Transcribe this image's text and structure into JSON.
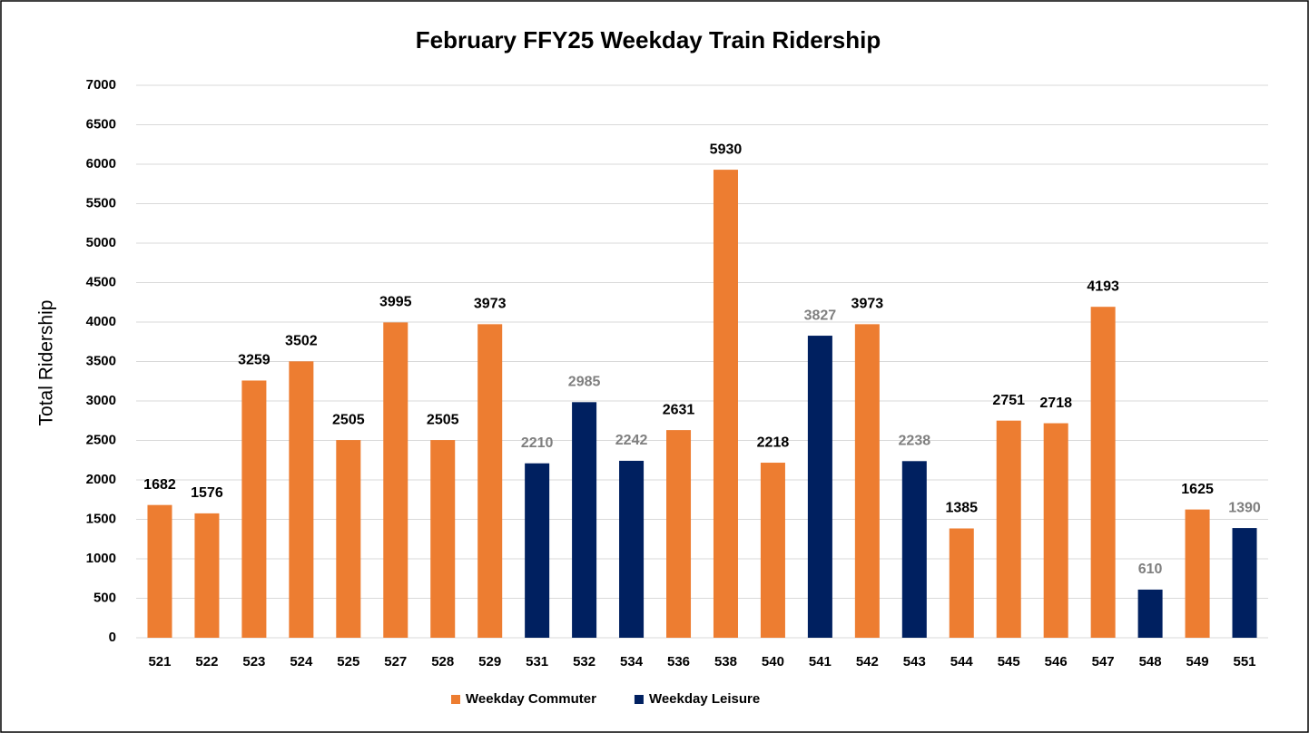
{
  "chart_data": {
    "type": "bar",
    "title": "February FFY25 Weekday Train Ridership",
    "y_label": "Total Ridership",
    "categories": [
      "521",
      "522",
      "523",
      "524",
      "525",
      "527",
      "528",
      "529",
      "531",
      "532",
      "534",
      "536",
      "538",
      "540",
      "541",
      "542",
      "543",
      "544",
      "545",
      "546",
      "547",
      "548",
      "549",
      "551"
    ],
    "series": [
      {
        "name": "Weekday Commuter",
        "color": "#ed7d31",
        "values": [
          1682,
          1576,
          3259,
          3502,
          2505,
          3995,
          2505,
          3973,
          null,
          null,
          null,
          2631,
          5930,
          2218,
          null,
          3973,
          null,
          1385,
          2751,
          2718,
          4193,
          null,
          1625,
          null
        ]
      },
      {
        "name": "Weekday Leisure",
        "color": "#002060",
        "values": [
          null,
          null,
          null,
          null,
          null,
          null,
          null,
          null,
          2210,
          2985,
          2242,
          null,
          null,
          null,
          3827,
          null,
          2238,
          null,
          null,
          null,
          null,
          610,
          null,
          1390
        ]
      }
    ],
    "ylim": [
      0,
      7000
    ],
    "yticks": [
      0,
      500,
      1000,
      1500,
      2000,
      2500,
      3000,
      3500,
      4000,
      4500,
      5000,
      5500,
      6000,
      6500,
      7000
    ],
    "grid": true,
    "legend": "bottom"
  }
}
